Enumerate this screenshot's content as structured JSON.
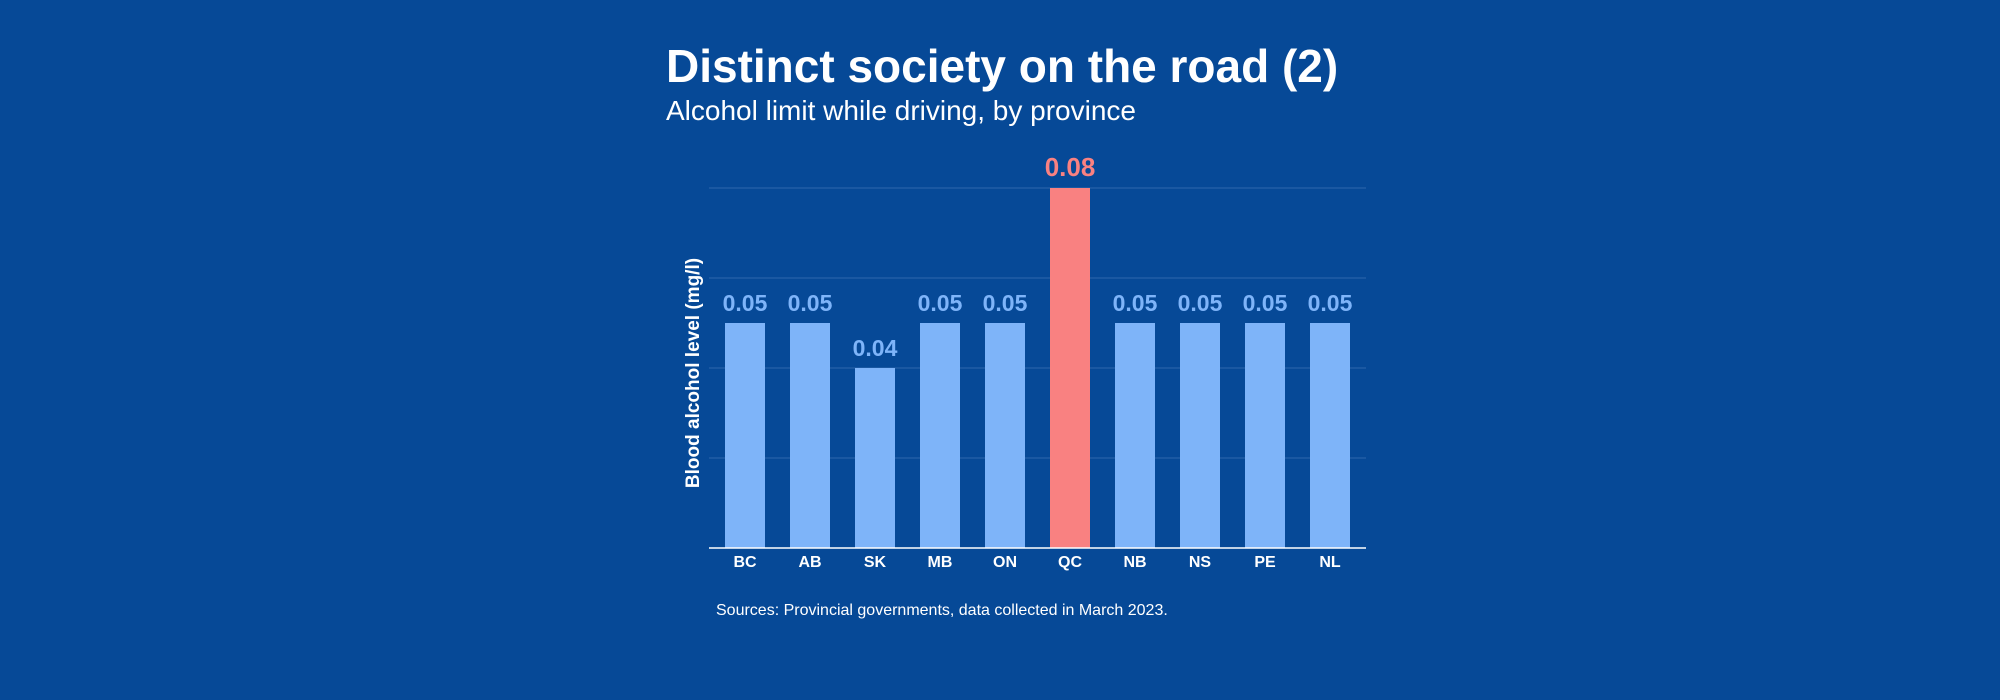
{
  "header": {
    "title": "Distinct society on the road (2)",
    "subtitle": "Alcohol limit while driving, by province"
  },
  "footer": {
    "source": "Sources: Provincial governments, data collected in March 2023."
  },
  "colors": {
    "background": "#064997",
    "bar_default": "#7eb4f9",
    "bar_highlight": "#f98181",
    "grid": "#2f66ad",
    "axis": "#ffffff"
  },
  "chart_data": {
    "type": "bar",
    "title": "Distinct society on the road (2)",
    "subtitle": "Alcohol limit while driving, by province",
    "xlabel": "",
    "ylabel": "Blood alcohol level (mg/l)",
    "categories": [
      "BC",
      "AB",
      "SK",
      "MB",
      "ON",
      "QC",
      "NB",
      "NS",
      "PE",
      "NL"
    ],
    "values": [
      0.05,
      0.05,
      0.04,
      0.05,
      0.05,
      0.08,
      0.05,
      0.05,
      0.05,
      0.05
    ],
    "value_labels": [
      "0.05",
      "0.05",
      "0.04",
      "0.05",
      "0.05",
      "0.08",
      "0.05",
      "0.05",
      "0.05",
      "0.05"
    ],
    "highlight": "QC",
    "ylim": [
      0,
      0.08
    ],
    "grid_values": [
      0.02,
      0.04,
      0.06,
      0.08
    ],
    "grid": true,
    "legend": "none"
  }
}
